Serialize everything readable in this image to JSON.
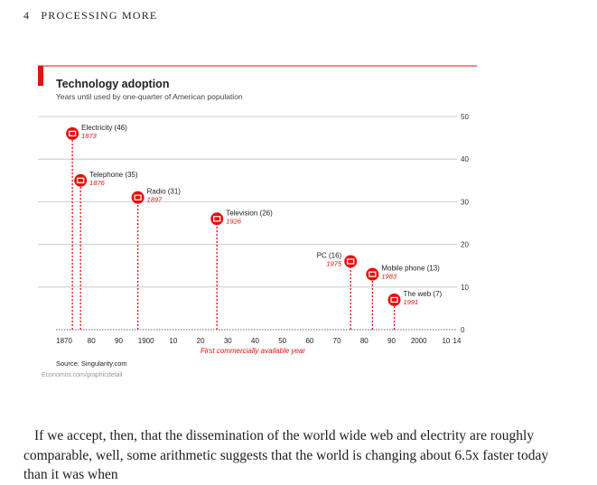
{
  "page_header": {
    "number": "4",
    "title": "PROCESSING MORE"
  },
  "colors": {
    "accent": "#e3120b",
    "grid": "#bfbfbf",
    "text": "#222222"
  },
  "chart_data": {
    "type": "scatter",
    "title": "Technology adoption",
    "subtitle": "Years until used by one-quarter of American population",
    "xlabel": "First commercially available year",
    "ylabel": "",
    "xlim": [
      1867,
      2014
    ],
    "ylim": [
      0,
      50
    ],
    "x_ticks": [
      "1870",
      "80",
      "90",
      "1900",
      "10",
      "20",
      "30",
      "40",
      "50",
      "60",
      "70",
      "80",
      "90",
      "2000",
      "10",
      "14"
    ],
    "x_tick_values": [
      1870,
      1880,
      1890,
      1900,
      1910,
      1920,
      1930,
      1940,
      1950,
      1960,
      1970,
      1980,
      1990,
      2000,
      2010,
      2014
    ],
    "y_ticks": [
      0,
      10,
      20,
      30,
      40,
      50
    ],
    "grid": true,
    "points": [
      {
        "name": "Electricity (46)",
        "year_label": "1873",
        "x": 1873,
        "y": 46,
        "icon": "lightning-bolt-icon"
      },
      {
        "name": "Telephone (35)",
        "year_label": "1876",
        "x": 1876,
        "y": 35,
        "icon": "telephone-icon"
      },
      {
        "name": "Radio (31)",
        "year_label": "1897",
        "x": 1897,
        "y": 31,
        "icon": "radio-icon"
      },
      {
        "name": "Television (26)",
        "year_label": "1926",
        "x": 1926,
        "y": 26,
        "icon": "television-icon"
      },
      {
        "name": "PC (16)",
        "year_label": "1975",
        "x": 1975,
        "y": 16,
        "icon": "computer-icon"
      },
      {
        "name": "Mobile phone (13)",
        "year_label": "1983",
        "x": 1983,
        "y": 13,
        "icon": "mobile-phone-icon"
      },
      {
        "name": "The web (7)",
        "year_label": "1991",
        "x": 1991,
        "y": 7,
        "icon": "globe-icon"
      }
    ],
    "source": "Source: Singularity.com",
    "credit": "Economist.com/graphicdetail"
  },
  "body_text": "If we accept, then, that the dissemination of the world wide web and electrity are roughly comparable, well, some arithmetic suggests that the world is changing about 6.5x faster today than it was when"
}
